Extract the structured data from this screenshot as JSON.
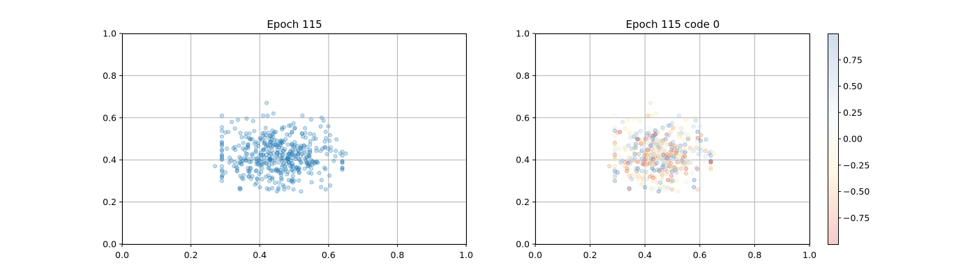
{
  "chart_data": [
    {
      "type": "scatter",
      "title": "Epoch 115",
      "xlabel": "",
      "ylabel": "",
      "xlim": [
        0.0,
        1.0
      ],
      "ylim": [
        0.0,
        1.0
      ],
      "xticks": [
        "0.0",
        "0.2",
        "0.4",
        "0.6",
        "0.8",
        "1.0"
      ],
      "yticks": [
        "0.0",
        "0.2",
        "0.4",
        "0.6",
        "0.8",
        "1.0"
      ],
      "grid": true,
      "point_color": "#1f77b4",
      "distribution": {
        "n": 450,
        "x_center": 0.455,
        "x_spread": 0.08,
        "y_center": 0.415,
        "y_spread": 0.075
      },
      "highlight_points": [
        {
          "x": 0.42,
          "y": 0.67
        },
        {
          "x": 0.27,
          "y": 0.37
        },
        {
          "x": 0.3,
          "y": 0.53
        },
        {
          "x": 0.65,
          "y": 0.43
        },
        {
          "x": 0.64,
          "y": 0.39
        },
        {
          "x": 0.52,
          "y": 0.25
        },
        {
          "x": 0.45,
          "y": 0.25
        },
        {
          "x": 0.4,
          "y": 0.27
        },
        {
          "x": 0.44,
          "y": 0.62
        },
        {
          "x": 0.58,
          "y": 0.6
        }
      ]
    },
    {
      "type": "scatter",
      "title": "Epoch 115 code 0",
      "xlabel": "",
      "ylabel": "",
      "xlim": [
        0.0,
        1.0
      ],
      "ylim": [
        0.0,
        1.0
      ],
      "xticks": [
        "0.0",
        "0.2",
        "0.4",
        "0.6",
        "0.8",
        "1.0"
      ],
      "yticks": [
        "0.0",
        "0.2",
        "0.4",
        "0.6",
        "0.8",
        "1.0"
      ],
      "grid": true,
      "colormap": "RdYlBu-style (red = low, blue = high)",
      "colorbar": {
        "range": [
          -1.0,
          1.0
        ],
        "ticks": [
          "0.75",
          "0.50",
          "0.25",
          "0.00",
          "−0.25",
          "−0.50",
          "−0.75"
        ],
        "tick_values": [
          0.75,
          0.5,
          0.25,
          0.0,
          -0.25,
          -0.5,
          -0.75
        ],
        "colors": [
          "#d73027",
          "#fee090",
          "#e0f3f8",
          "#4575b4"
        ]
      },
      "same_points_as_left": true
    }
  ]
}
